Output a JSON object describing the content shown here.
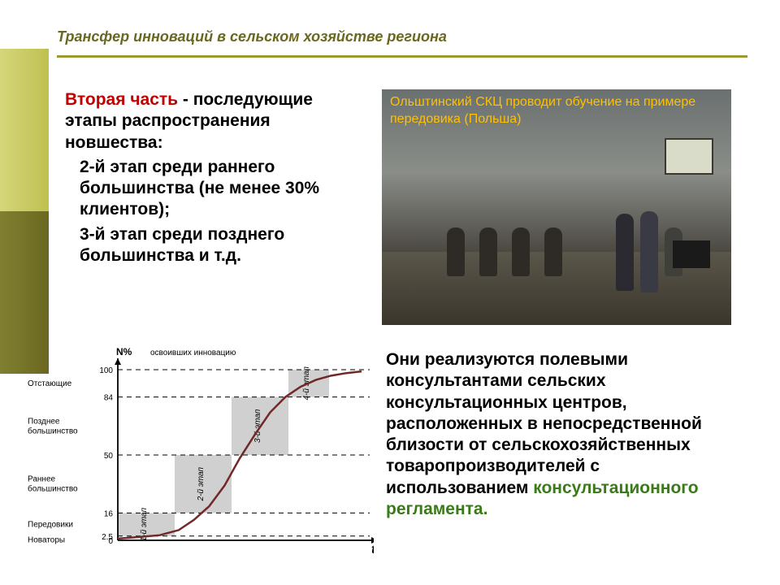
{
  "header": {
    "title": "Трансфер инноваций в сельском хозяйстве региона",
    "title_color": "#6a6820",
    "rule_color": "#9a9a30"
  },
  "sidebar": {
    "top_gradient": [
      "#d4d67a",
      "#c0c050"
    ],
    "bottom_gradient": [
      "#808030",
      "#6a6820"
    ]
  },
  "left_block": {
    "lead_red": "Вторая часть",
    "lead_rest": " - последующие этапы распространения новшества:",
    "item2": "2-й этап среди раннего большинства (не менее 30% клиентов);",
    "item3": "3-й этап среди позднего большинства и т.д.",
    "red_color": "#c00000"
  },
  "photo": {
    "caption": "Ольштинский СКЦ проводит обучение на примере передовика (Польша)",
    "caption_color": "#ffc000"
  },
  "right_block": {
    "body": "Они реализуются полевыми консультантами сельских консультационных центров, расположенных в непосредственной близости от сельскохозяйственных товаропроизводителей с использованием ",
    "emph": "консультационного регламента.",
    "emph_color": "#3a7a1a"
  },
  "chart": {
    "type": "s-curve",
    "title_top": "освоивших инновацию",
    "y_label": "N%",
    "x_label": "t",
    "ylim": [
      0,
      100
    ],
    "yticks": [
      0,
      2.5,
      16,
      50,
      84,
      100
    ],
    "ytick_labels": [
      "0",
      "2.5",
      "16",
      "50",
      "84",
      "100"
    ],
    "left_categories": [
      "Отстающие",
      "Позднее большинство",
      "Раннее большинство",
      "Передовики",
      "Новаторы"
    ],
    "stage_labels": [
      "1-й этап",
      "2-й этап",
      "3-й этап",
      "4-й этап"
    ],
    "curve_points": [
      [
        0,
        1
      ],
      [
        30,
        2
      ],
      [
        55,
        3
      ],
      [
        80,
        6
      ],
      [
        100,
        12
      ],
      [
        120,
        20
      ],
      [
        140,
        32
      ],
      [
        160,
        48
      ],
      [
        180,
        62
      ],
      [
        200,
        75
      ],
      [
        220,
        84
      ],
      [
        240,
        90
      ],
      [
        260,
        94
      ],
      [
        280,
        96.5
      ],
      [
        300,
        98
      ],
      [
        320,
        99
      ]
    ],
    "curve_color": "#702828",
    "curve_width": 2.5,
    "axis_color": "#000000",
    "dash_color": "#000000",
    "stage_fill": "#d0d0d0",
    "background": "#ffffff",
    "font_size_small": 10,
    "font_size_axis": 12,
    "stage_x_bounds": [
      70,
      140,
      210,
      280,
      330
    ],
    "plot_origin": [
      115,
      245
    ],
    "plot_size": [
      300,
      210
    ]
  }
}
